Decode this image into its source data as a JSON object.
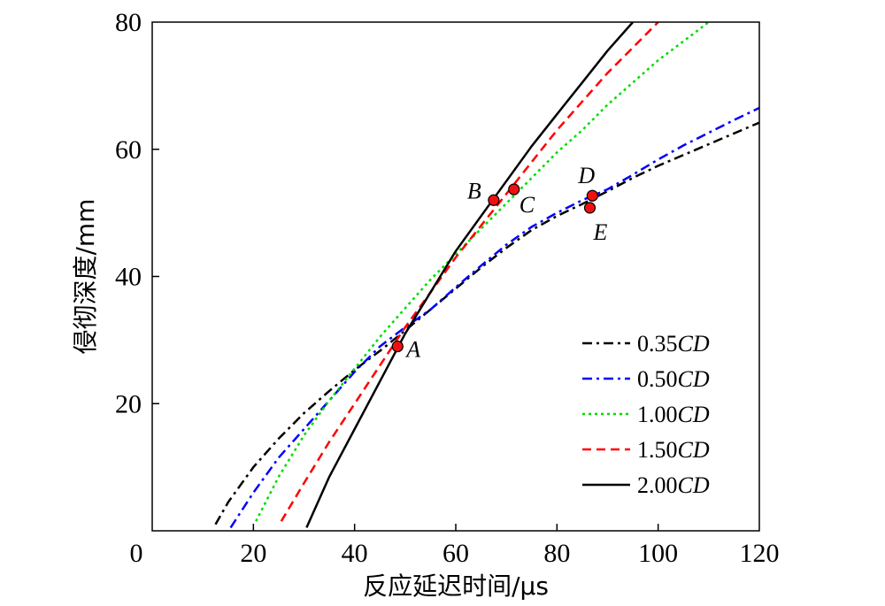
{
  "chart_data": {
    "type": "line",
    "xlabel": "反应延迟时间/μs",
    "ylabel": "侵彻深度/mm",
    "xlim": [
      0,
      120
    ],
    "ylim": [
      0,
      80
    ],
    "x_ticks": [
      "0",
      "20",
      "40",
      "60",
      "80",
      "100",
      "120"
    ],
    "y_ticks": [
      "20",
      "40",
      "60",
      "80"
    ],
    "grid": false,
    "legend_position": "bottom-right",
    "series": [
      {
        "name": "0.35",
        "name_suffix": "CD",
        "color": "#000000",
        "dash": "dashdot",
        "points": [
          [
            12.5,
            1
          ],
          [
            15,
            4.5
          ],
          [
            20,
            10
          ],
          [
            25,
            14.5
          ],
          [
            30,
            18.5
          ],
          [
            35,
            22
          ],
          [
            40,
            25.3
          ],
          [
            45,
            28.3
          ],
          [
            50,
            31.5
          ],
          [
            55,
            34.8
          ],
          [
            60,
            38.1
          ],
          [
            65,
            41.4
          ],
          [
            70,
            44.5
          ],
          [
            75,
            47.3
          ],
          [
            80,
            49.5
          ],
          [
            85,
            51.4
          ],
          [
            90,
            53.4
          ],
          [
            95,
            55.5
          ],
          [
            100,
            57.4
          ],
          [
            105,
            59.1
          ],
          [
            110,
            60.8
          ],
          [
            115,
            62.5
          ],
          [
            120,
            64.2
          ]
        ]
      },
      {
        "name": "0.50",
        "name_suffix": "CD",
        "color": "#0000ff",
        "dash": "dashdot",
        "points": [
          [
            15.5,
            0.5
          ],
          [
            20,
            6
          ],
          [
            25,
            11.5
          ],
          [
            30,
            16
          ],
          [
            35,
            20.5
          ],
          [
            40,
            25
          ],
          [
            45,
            29
          ],
          [
            50,
            32
          ],
          [
            55,
            34.8
          ],
          [
            60,
            38.3
          ],
          [
            65,
            41.7
          ],
          [
            70,
            45
          ],
          [
            75,
            47.8
          ],
          [
            80,
            50
          ],
          [
            85,
            52
          ],
          [
            90,
            53.7
          ],
          [
            95,
            56
          ],
          [
            100,
            58.4
          ],
          [
            105,
            60.6
          ],
          [
            110,
            62.6
          ],
          [
            115,
            64.6
          ],
          [
            120,
            66.5
          ]
        ]
      },
      {
        "name": "1.00",
        "name_suffix": "CD",
        "color": "#00dd00",
        "dash": "dotted",
        "points": [
          [
            20.5,
            1.5
          ],
          [
            25,
            8.5
          ],
          [
            30,
            15
          ],
          [
            35,
            20.5
          ],
          [
            40,
            25.5
          ],
          [
            45,
            30.5
          ],
          [
            50,
            35
          ],
          [
            55,
            39.5
          ],
          [
            60,
            43.5
          ],
          [
            65,
            47.5
          ],
          [
            70,
            51.5
          ],
          [
            75,
            55.5
          ],
          [
            80,
            59.5
          ],
          [
            85,
            63
          ],
          [
            90,
            67
          ],
          [
            95,
            70.5
          ],
          [
            100,
            74
          ],
          [
            105,
            77
          ],
          [
            110,
            80
          ]
        ]
      },
      {
        "name": "1.50",
        "name_suffix": "CD",
        "color": "#ff0000",
        "dash": "dashed",
        "points": [
          [
            25.5,
            1.5
          ],
          [
            30,
            7.5
          ],
          [
            35,
            14
          ],
          [
            40,
            20
          ],
          [
            45,
            26
          ],
          [
            50,
            32
          ],
          [
            55,
            37.5
          ],
          [
            60,
            43
          ],
          [
            65,
            48
          ],
          [
            70,
            53
          ],
          [
            75,
            58
          ],
          [
            80,
            63
          ],
          [
            85,
            67.5
          ],
          [
            90,
            72
          ],
          [
            95,
            76
          ],
          [
            100,
            80
          ]
        ]
      },
      {
        "name": "2.00",
        "name_suffix": "CD",
        "color": "#000000",
        "dash": "solid",
        "points": [
          [
            30.5,
            0.5
          ],
          [
            35,
            8.5
          ],
          [
            40,
            16
          ],
          [
            45,
            23.5
          ],
          [
            50,
            31
          ],
          [
            55,
            37.5
          ],
          [
            60,
            44
          ],
          [
            65,
            49.5
          ],
          [
            70,
            55
          ],
          [
            75,
            60.5
          ],
          [
            80,
            65.5
          ],
          [
            85,
            70.5
          ],
          [
            90,
            75.5
          ],
          [
            95,
            80
          ]
        ]
      }
    ],
    "annotations": [
      {
        "label": "A",
        "x": 48.5,
        "y": 29
      },
      {
        "label": "B",
        "x": 67.5,
        "y": 52
      },
      {
        "label": "C",
        "x": 71.5,
        "y": 53.7
      },
      {
        "label": "D",
        "x": 87,
        "y": 52.7
      },
      {
        "label": "E",
        "x": 86.5,
        "y": 50.8
      }
    ]
  }
}
